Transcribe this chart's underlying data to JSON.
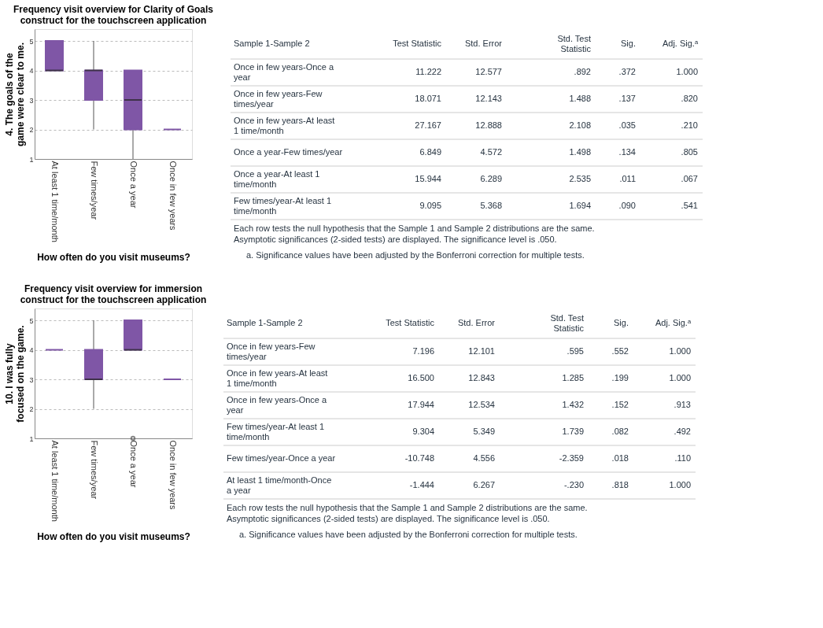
{
  "chart_data": [
    {
      "type": "box",
      "title": "Frequency visit overview for Clarity of Goals construct for the touchscreen application",
      "xlabel": "How often do you visit museums?",
      "ylabel": "4. The goals of the game were clear to me.",
      "categories": [
        "At least 1 time/month",
        "Few times/year",
        "Once a year",
        "Once in few years"
      ],
      "ylim": [
        1,
        5.4
      ],
      "yticks": [
        1,
        2,
        3,
        4,
        5
      ],
      "grid": "y",
      "series": [
        {
          "color": "#7f56a6",
          "boxes": [
            {
              "low": 4,
              "q1": 4,
              "median": 4,
              "q3": 5,
              "high": 5
            },
            {
              "low": 2,
              "q1": 3,
              "median": 4,
              "q3": 4,
              "high": 5
            },
            {
              "low": 1,
              "q1": 2,
              "median": 3,
              "q3": 4,
              "high": 4
            },
            {
              "low": 2,
              "q1": 2,
              "median": 2,
              "q3": 2,
              "high": 2
            }
          ]
        }
      ]
    },
    {
      "type": "other",
      "annotations": [
        "Sample 1-Sample 2",
        "Test Statistic",
        "Std. Error",
        "Std. Test Statistic",
        "Sig.",
        "Adj. Sig.ᵃ",
        "Once in few years-Once a year",
        "11.222",
        "12.577",
        ".892",
        ".372",
        "1.000",
        "Once in few years-Few times/year",
        "18.071",
        "12.143",
        "1.488",
        ".137",
        ".820",
        "Once in few years-At least 1 time/month",
        "27.167",
        "12.888",
        "2.108",
        ".035",
        ".210",
        "Once a year-Few times/year",
        "6.849",
        "4.572",
        "1.498",
        ".134",
        ".805",
        "Once a year-At least 1 time/month",
        "15.944",
        "6.289",
        "2.535",
        ".011",
        ".067",
        "Few times/year-At least 1 time/month",
        "9.095",
        "5.368",
        "1.694",
        ".090",
        ".541",
        "Each row tests the null hypothesis that the Sample 1 and Sample 2 distributions are the same.",
        "Asymptotic significances (2-sided tests) are displayed. The significance level is .050.",
        "a. Significance values have been adjusted by the Bonferroni correction for multiple tests."
      ]
    },
    {
      "type": "box",
      "title": "Frequency visit overview for immersion construct for the touchscreen application",
      "xlabel": "How often do you visit museums?",
      "ylabel": "10. I was fully focused on the game.",
      "categories": [
        "At least 1 time/month",
        "Few times/year",
        "Once a year",
        "Once in few years"
      ],
      "ylim": [
        1,
        5.4
      ],
      "yticks": [
        1,
        2,
        3,
        4,
        5
      ],
      "grid": "y",
      "series": [
        {
          "color": "#7f56a6",
          "boxes": [
            {
              "low": 4,
              "q1": 4,
              "median": 4,
              "q3": 4,
              "high": 4
            },
            {
              "low": 2,
              "q1": 3,
              "median": 3,
              "q3": 4,
              "high": 5
            },
            {
              "low": 4,
              "q1": 4,
              "median": 4,
              "q3": 5,
              "high": 5,
              "outliers": [
                1
              ]
            },
            {
              "low": 3,
              "q1": 3,
              "median": 3,
              "q3": 3,
              "high": 3
            }
          ]
        }
      ]
    },
    {
      "type": "other",
      "annotations": [
        "Sample 1-Sample 2",
        "Test Statistic",
        "Std. Error",
        "Std. Test Statistic",
        "Sig.",
        "Adj. Sig.ᵃ",
        "Once in few years-Few times/year",
        "7.196",
        "12.101",
        ".595",
        ".552",
        "1.000",
        "Once in few years-At least 1 time/month",
        "16.500",
        "12.843",
        "1.285",
        ".199",
        "1.000",
        "Once in few years-Once a year",
        "17.944",
        "12.534",
        "1.432",
        ".152",
        ".913",
        "Few times/year-At least 1 time/month",
        "9.304",
        "5.349",
        "1.739",
        ".082",
        ".492",
        "Few times/year-Once a year",
        "-10.748",
        "4.556",
        "-2.359",
        ".018",
        ".110",
        "At least 1 time/month-Once a year",
        "-1.444",
        "6.267",
        "-.230",
        ".818",
        "1.000",
        "Each row tests the null hypothesis that the Sample 1 and Sample 2 distributions are the same.",
        "Asymptotic significances (2-sided tests) are displayed. The significance level is .050.",
        "a. Significance values have been adjusted by the Bonferroni correction for multiple tests."
      ]
    }
  ]
}
